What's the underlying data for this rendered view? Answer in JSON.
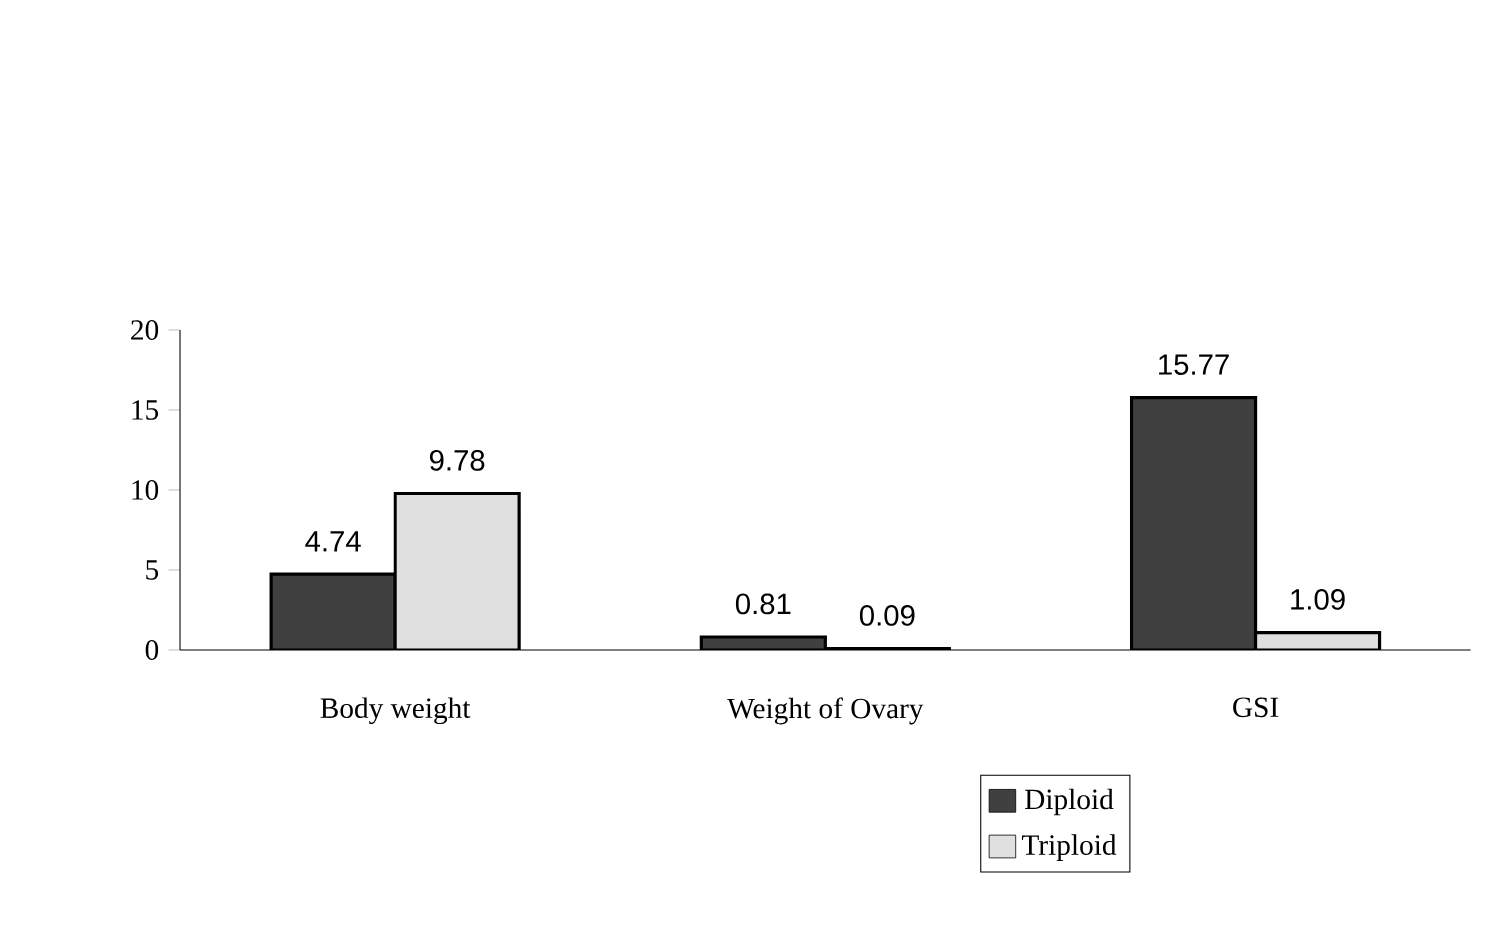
{
  "chart_data": {
    "type": "bar",
    "categories": [
      "Body weight",
      "Weight of Ovary",
      "GSI"
    ],
    "series": [
      {
        "name": "Diploid",
        "color": "#404040",
        "values": [
          4.74,
          0.81,
          15.77
        ]
      },
      {
        "name": "Triploid",
        "color": "#e0e0e0",
        "values": [
          9.78,
          0.09,
          1.09
        ]
      }
    ],
    "ylim": [
      0,
      20
    ],
    "yticks": [
      0,
      5,
      10,
      15,
      20
    ],
    "data_labels": true,
    "legend": "bottom"
  }
}
